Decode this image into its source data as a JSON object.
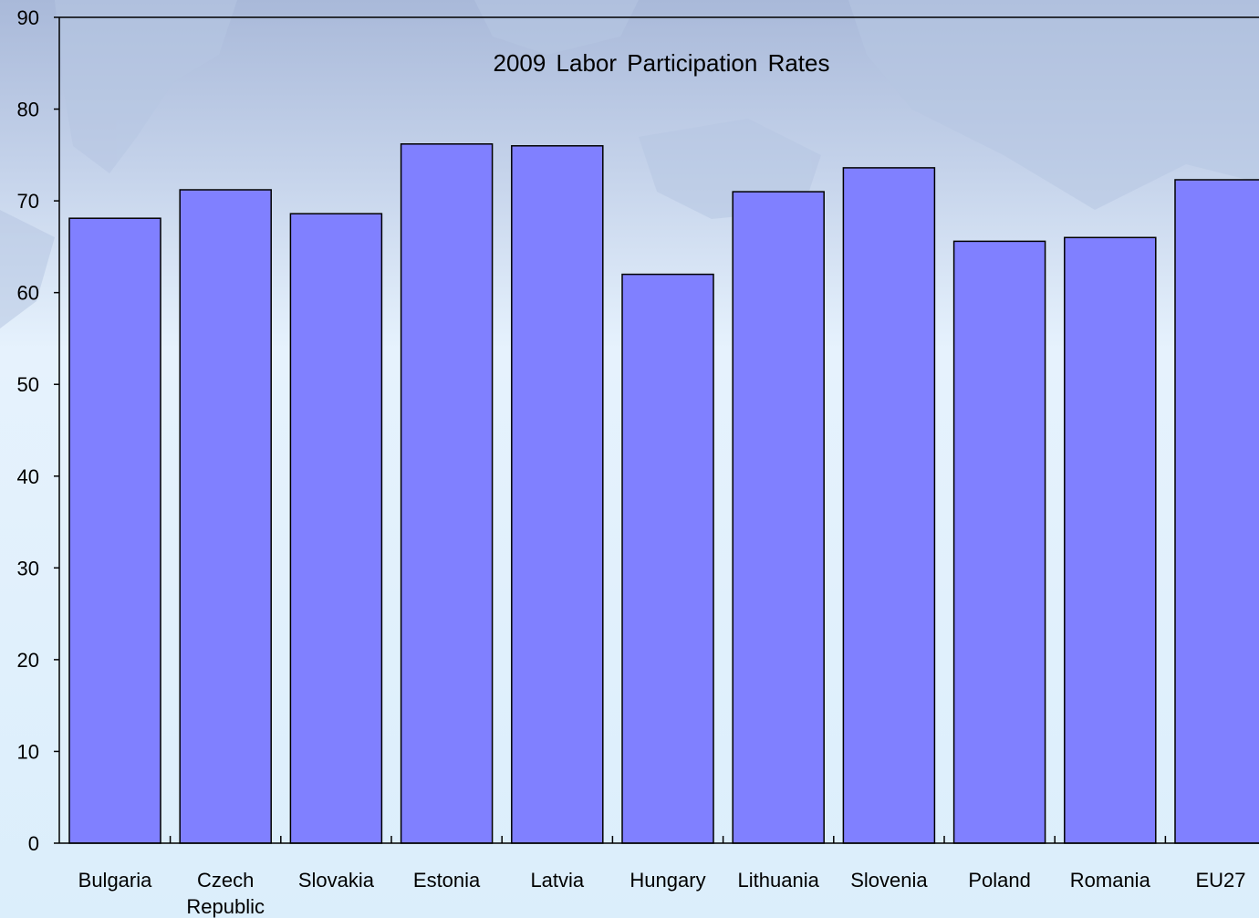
{
  "chart_data": {
    "type": "bar",
    "title": "2009 Labor Participation Rates",
    "xlabel": "",
    "ylabel": "",
    "ylim": [
      0,
      90
    ],
    "yticks": [
      0,
      10,
      20,
      30,
      40,
      50,
      60,
      70,
      80,
      90
    ],
    "categories": [
      [
        "Bulgaria"
      ],
      [
        "Czech",
        "Republic"
      ],
      [
        "Slovakia"
      ],
      [
        "Estonia"
      ],
      [
        "Latvia"
      ],
      [
        "Hungary"
      ],
      [
        "Lithuania"
      ],
      [
        "Slovenia"
      ],
      [
        "Poland"
      ],
      [
        "Romania"
      ],
      [
        "EU27"
      ]
    ],
    "values": [
      68.1,
      71.2,
      68.6,
      76.2,
      76.0,
      62.0,
      71.0,
      73.6,
      65.6,
      66.0,
      72.3
    ],
    "bar_color": "#8080ff",
    "bar_outline": "#000000",
    "grid": false,
    "legend": "none"
  }
}
